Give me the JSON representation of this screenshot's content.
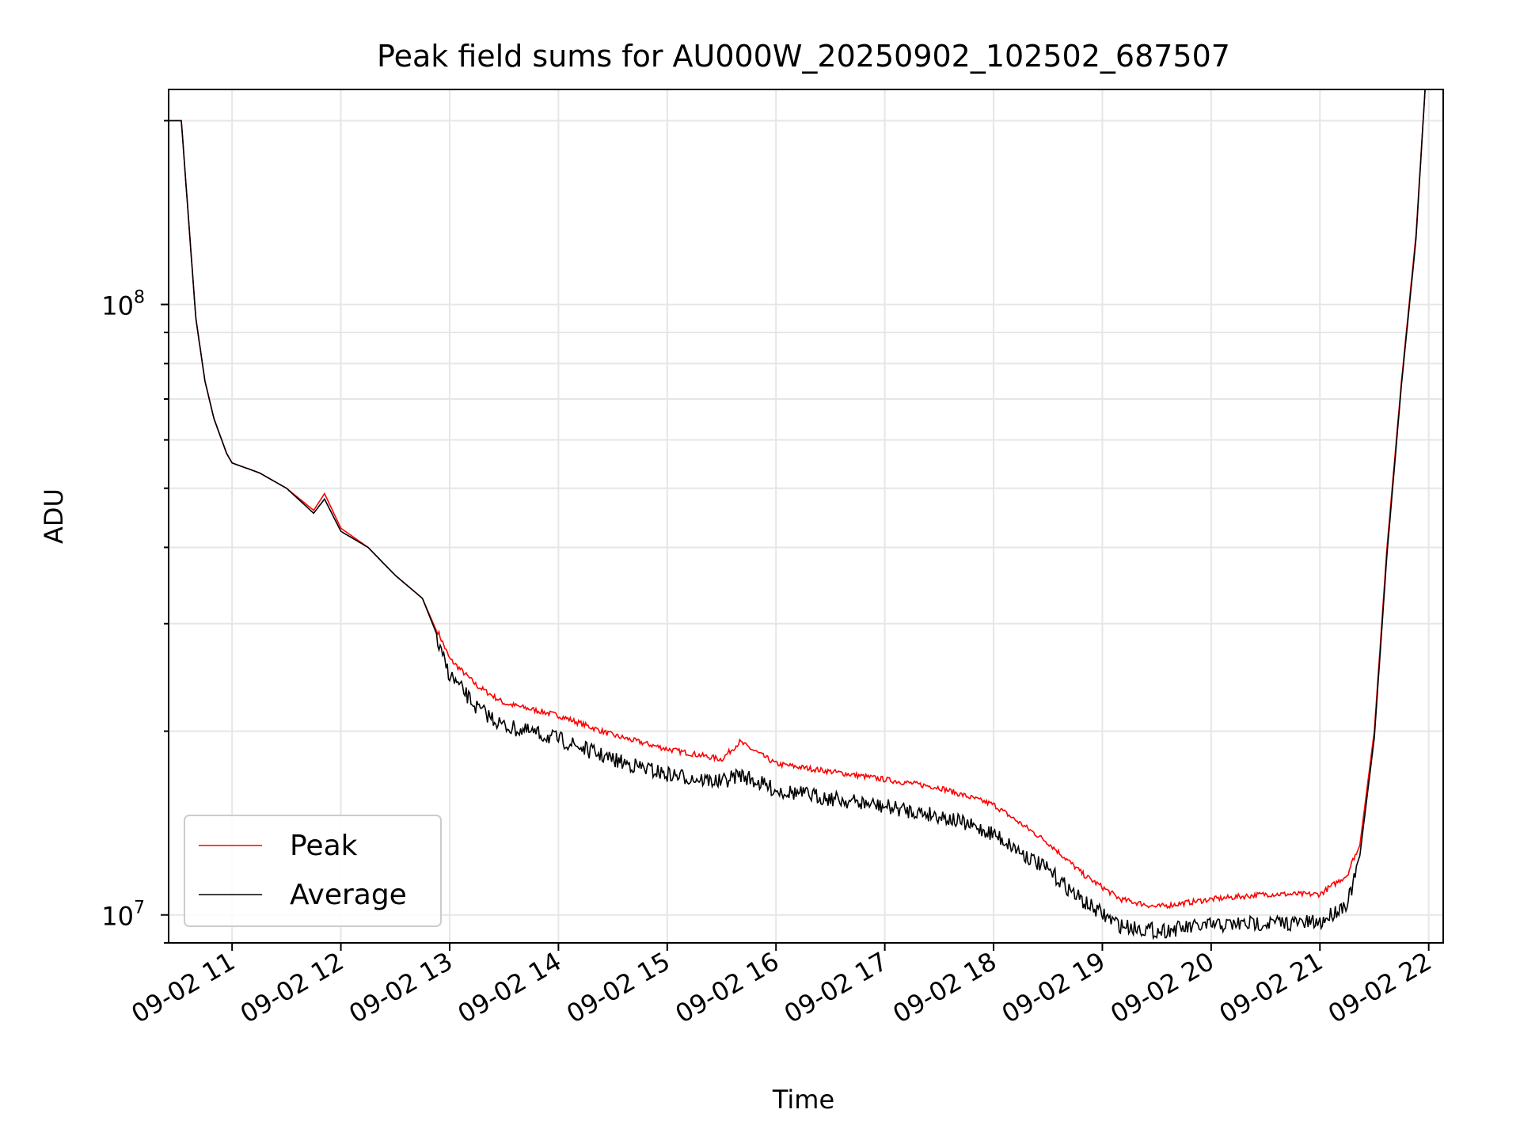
{
  "chart_data": {
    "type": "line",
    "title": "Peak field sums for AU000W_20250902_102502_687507",
    "xlabel": "Time",
    "ylabel": "ADU",
    "yscale": "log",
    "grid": true,
    "legend_position": "lower-left",
    "xlim": [
      "2025-09-02 10:25",
      "2025-09-02 22:08"
    ],
    "ylim": [
      9000000,
      225000000
    ],
    "x_ticks": [
      {
        "value": "2025-09-02 11:00",
        "label": "09-02 11"
      },
      {
        "value": "2025-09-02 12:00",
        "label": "09-02 12"
      },
      {
        "value": "2025-09-02 13:00",
        "label": "09-02 13"
      },
      {
        "value": "2025-09-02 14:00",
        "label": "09-02 14"
      },
      {
        "value": "2025-09-02 15:00",
        "label": "09-02 15"
      },
      {
        "value": "2025-09-02 16:00",
        "label": "09-02 16"
      },
      {
        "value": "2025-09-02 17:00",
        "label": "09-02 17"
      },
      {
        "value": "2025-09-02 18:00",
        "label": "09-02 18"
      },
      {
        "value": "2025-09-02 19:00",
        "label": "09-02 19"
      },
      {
        "value": "2025-09-02 20:00",
        "label": "09-02 20"
      },
      {
        "value": "2025-09-02 21:00",
        "label": "09-02 21"
      },
      {
        "value": "2025-09-02 22:00",
        "label": "09-02 22"
      }
    ],
    "y_ticks": [
      {
        "value": 10000000,
        "base": "10",
        "exp": "7"
      },
      {
        "value": 100000000,
        "base": "10",
        "exp": "8"
      }
    ],
    "series": [
      {
        "name": "Peak",
        "color": "#ff0000",
        "x": [
          "2025-09-02 10:25",
          "2025-09-02 10:32",
          "2025-09-02 10:40",
          "2025-09-02 10:45",
          "2025-09-02 10:50",
          "2025-09-02 10:57",
          "2025-09-02 11:00",
          "2025-09-02 11:15",
          "2025-09-02 11:30",
          "2025-09-02 11:45",
          "2025-09-02 11:51",
          "2025-09-02 12:00",
          "2025-09-02 12:15",
          "2025-09-02 12:30",
          "2025-09-02 12:45",
          "2025-09-02 13:00",
          "2025-09-02 13:15",
          "2025-09-02 13:30",
          "2025-09-02 14:00",
          "2025-09-02 14:30",
          "2025-09-02 15:00",
          "2025-09-02 15:30",
          "2025-09-02 15:40",
          "2025-09-02 16:00",
          "2025-09-02 16:30",
          "2025-09-02 17:00",
          "2025-09-02 17:30",
          "2025-09-02 18:00",
          "2025-09-02 18:30",
          "2025-09-02 18:50",
          "2025-09-02 19:10",
          "2025-09-02 19:30",
          "2025-09-02 20:00",
          "2025-09-02 20:30",
          "2025-09-02 21:00",
          "2025-09-02 21:15",
          "2025-09-02 21:22",
          "2025-09-02 21:30",
          "2025-09-02 21:37",
          "2025-09-02 21:45",
          "2025-09-02 21:53",
          "2025-09-02 21:58"
        ],
        "y": [
          200000000,
          200000000,
          95000000,
          75000000,
          65000000,
          57000000,
          55000000,
          53000000,
          50000000,
          46000000,
          49000000,
          43000000,
          40000000,
          36000000,
          33000000,
          26000000,
          23500000,
          22000000,
          21000000,
          19500000,
          18500000,
          17800000,
          19000000,
          17500000,
          17000000,
          16500000,
          16000000,
          15000000,
          13000000,
          11500000,
          10500000,
          10200000,
          10500000,
          10700000,
          10700000,
          11500000,
          13000000,
          20000000,
          40000000,
          75000000,
          130000000,
          225000000
        ]
      },
      {
        "name": "Average",
        "color": "#000000",
        "x": [
          "2025-09-02 10:25",
          "2025-09-02 10:32",
          "2025-09-02 10:40",
          "2025-09-02 10:45",
          "2025-09-02 10:50",
          "2025-09-02 10:57",
          "2025-09-02 11:00",
          "2025-09-02 11:15",
          "2025-09-02 11:30",
          "2025-09-02 11:45",
          "2025-09-02 11:51",
          "2025-09-02 12:00",
          "2025-09-02 12:15",
          "2025-09-02 12:30",
          "2025-09-02 12:45",
          "2025-09-02 13:00",
          "2025-09-02 13:15",
          "2025-09-02 13:30",
          "2025-09-02 14:00",
          "2025-09-02 14:30",
          "2025-09-02 15:00",
          "2025-09-02 15:30",
          "2025-09-02 15:40",
          "2025-09-02 16:00",
          "2025-09-02 16:30",
          "2025-09-02 17:00",
          "2025-09-02 17:30",
          "2025-09-02 18:00",
          "2025-09-02 18:30",
          "2025-09-02 18:50",
          "2025-09-02 19:10",
          "2025-09-02 19:30",
          "2025-09-02 20:00",
          "2025-09-02 20:30",
          "2025-09-02 21:00",
          "2025-09-02 21:15",
          "2025-09-02 21:22",
          "2025-09-02 21:30",
          "2025-09-02 21:37",
          "2025-09-02 21:45",
          "2025-09-02 21:53",
          "2025-09-02 21:58"
        ],
        "y": [
          200000000,
          200000000,
          95000000,
          75000000,
          65000000,
          57000000,
          55000000,
          53000000,
          50000000,
          45500000,
          48000000,
          42500000,
          40000000,
          36000000,
          33000000,
          25500000,
          22500000,
          21000000,
          20000000,
          18500000,
          17500000,
          17000000,
          17500000,
          16500000,
          16000000,
          15500000,
          15000000,
          14000000,
          12200000,
          10800000,
          9900000,
          9700000,
          9900000,
          10000000,
          10000000,
          10800000,
          12500000,
          19500000,
          39000000,
          74000000,
          128000000,
          225000000
        ]
      }
    ]
  }
}
